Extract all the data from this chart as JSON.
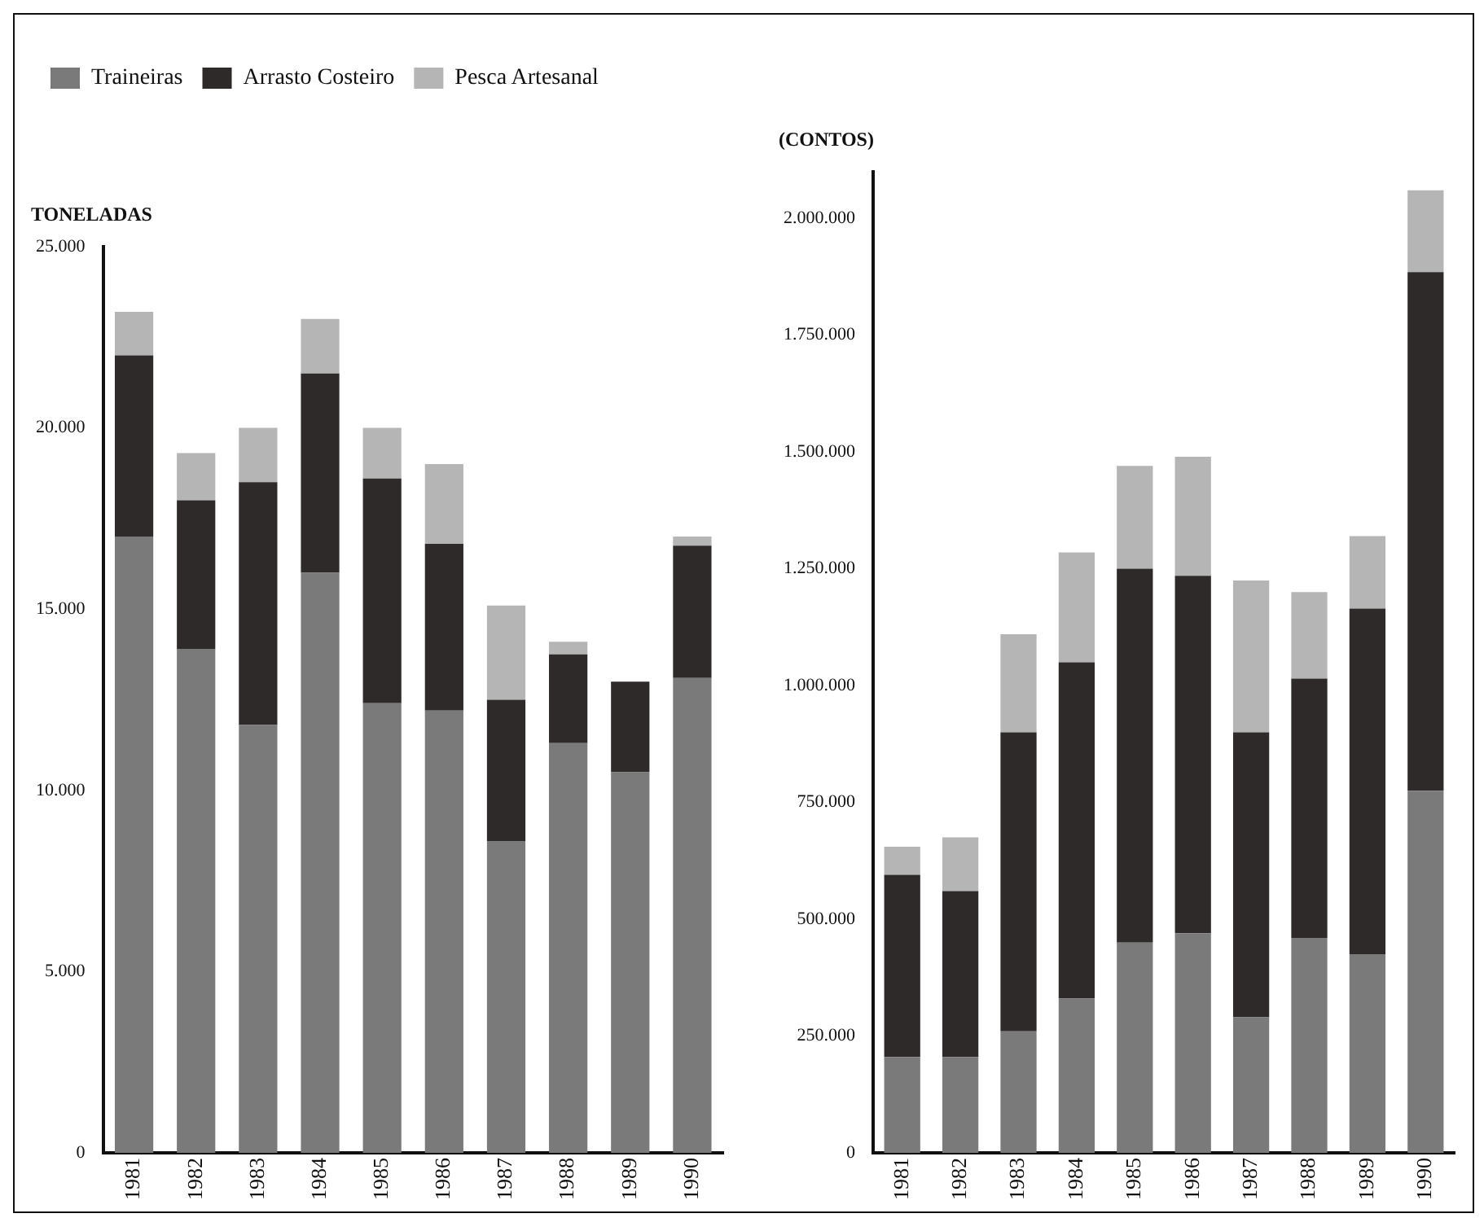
{
  "chart_data": [
    {
      "type": "bar",
      "stacked": true,
      "ylabel": "TONELADAS",
      "legend": "top left",
      "grid": false,
      "categories": [
        "1981",
        "1982",
        "1983",
        "1984",
        "1985",
        "1986",
        "1987",
        "1988",
        "1989",
        "1990"
      ],
      "ylim": [
        0,
        25000
      ],
      "yticks": [
        0,
        {
          "value": 5000,
          "label": "5.000"
        },
        {
          "value": 10000,
          "label": "10.000"
        },
        {
          "value": 15000,
          "label": "15.000"
        },
        {
          "value": 20000,
          "label": "20.000"
        },
        {
          "value": 25000,
          "label": "25.000"
        }
      ],
      "series": [
        {
          "name": "Traineiras",
          "color": "#7a7a7a",
          "values": [
            17000,
            13900,
            11800,
            16000,
            12400,
            12200,
            8600,
            11300,
            10500,
            13100
          ]
        },
        {
          "name": "Arrasto Costeiro",
          "color": "#2e2a2a",
          "values": [
            5000,
            4100,
            6700,
            5500,
            6200,
            4600,
            3900,
            2450,
            2500,
            3650
          ]
        },
        {
          "name": "Pesca Artesanal",
          "color": "#b5b5b5",
          "values": [
            1200,
            1300,
            1500,
            1500,
            1400,
            2200,
            2600,
            350,
            0,
            250
          ]
        }
      ]
    },
    {
      "type": "bar",
      "stacked": true,
      "ylabel": "(CONTOS)",
      "grid": false,
      "categories": [
        "1981",
        "1982",
        "1983",
        "1984",
        "1985",
        "1986",
        "1987",
        "1988",
        "1989",
        "1990"
      ],
      "ylim": [
        0,
        2100000
      ],
      "yticks": [
        0,
        {
          "value": 250000,
          "label": "250.000"
        },
        {
          "value": 500000,
          "label": "500.000"
        },
        {
          "value": 750000,
          "label": "750.000"
        },
        {
          "value": 1000000,
          "label": "1.000.000"
        },
        {
          "value": 1250000,
          "label": "1.250.000"
        },
        {
          "value": 1500000,
          "label": "1.500.000"
        },
        {
          "value": 1750000,
          "label": "1.750.000"
        },
        {
          "value": 2000000,
          "label": "2.000.000"
        }
      ],
      "series": [
        {
          "color": "#7a7a7a",
          "values": [
            205000,
            205000,
            260000,
            330000,
            450000,
            470000,
            290000,
            460000,
            425000,
            775000
          ]
        },
        {
          "color": "#2e2a2a",
          "values": [
            390000,
            355000,
            640000,
            720000,
            800000,
            765000,
            610000,
            555000,
            740000,
            1110000
          ]
        },
        {
          "color": "#b5b5b5",
          "values": [
            60000,
            115000,
            210000,
            235000,
            220000,
            255000,
            325000,
            185000,
            155000,
            175000
          ]
        }
      ]
    }
  ]
}
